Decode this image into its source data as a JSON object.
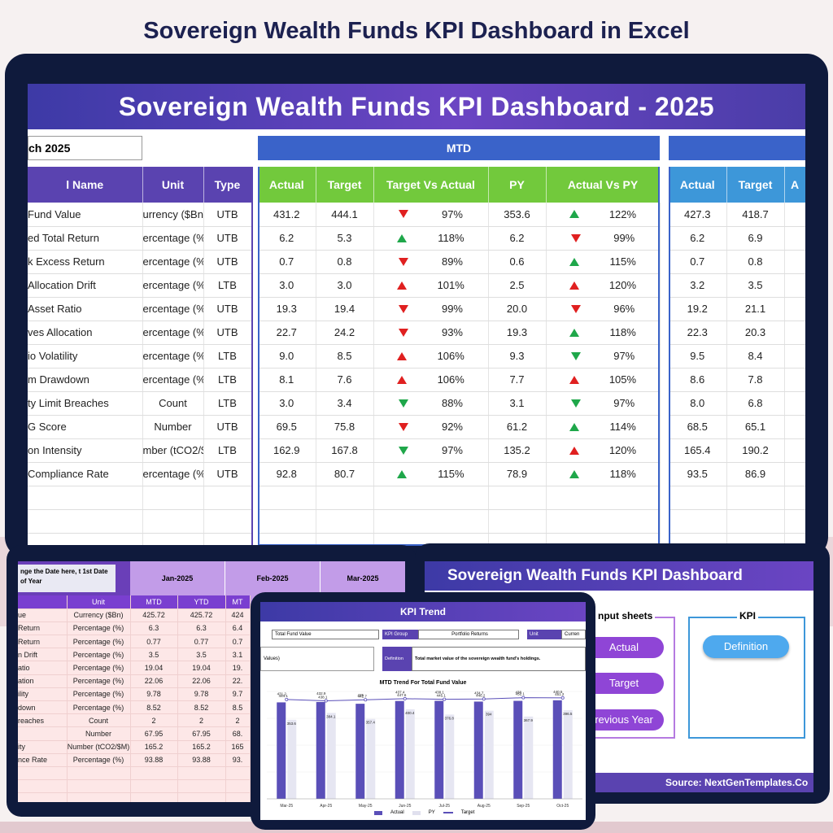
{
  "page_title": "Sovereign Wealth Funds KPI Dashboard in Excel",
  "main": {
    "banner": "Sovereign Wealth Funds KPI Dashboard - 2025",
    "date_value": "ch 2025",
    "mtd_label": "MTD",
    "left_headers": [
      "l Name",
      "Unit",
      "Type"
    ],
    "mtd_headers": [
      "Actual",
      "Target",
      "Target Vs Actual",
      "PY",
      "Actual Vs PY"
    ],
    "ytd_headers": [
      "Actual",
      "Target",
      "A"
    ],
    "rows": [
      {
        "name": "Fund Value",
        "unit": "urrency ($Bn",
        "type": "UTB",
        "a": "431.2",
        "t": "444.1",
        "tva_dir": "down-red",
        "tva": "97%",
        "py": "353.6",
        "avp_dir": "up-green",
        "avp": "122%",
        "ya": "427.3",
        "yt": "418.7"
      },
      {
        "name": "ed Total Return",
        "unit": "ercentage (%",
        "type": "UTB",
        "a": "6.2",
        "t": "5.3",
        "tva_dir": "up-green",
        "tva": "118%",
        "py": "6.2",
        "avp_dir": "down-red",
        "avp": "99%",
        "ya": "6.2",
        "yt": "6.9"
      },
      {
        "name": "k Excess Return",
        "unit": "ercentage (%",
        "type": "UTB",
        "a": "0.7",
        "t": "0.8",
        "tva_dir": "down-red",
        "tva": "89%",
        "py": "0.6",
        "avp_dir": "up-green",
        "avp": "115%",
        "ya": "0.7",
        "yt": "0.8"
      },
      {
        "name": "Allocation Drift",
        "unit": "ercentage (%",
        "type": "LTB",
        "a": "3.0",
        "t": "3.0",
        "tva_dir": "up-red",
        "tva": "101%",
        "py": "2.5",
        "avp_dir": "up-red",
        "avp": "120%",
        "ya": "3.2",
        "yt": "3.5"
      },
      {
        "name": "Asset Ratio",
        "unit": "ercentage (%",
        "type": "UTB",
        "a": "19.3",
        "t": "19.4",
        "tva_dir": "down-red",
        "tva": "99%",
        "py": "20.0",
        "avp_dir": "down-red",
        "avp": "96%",
        "ya": "19.2",
        "yt": "21.1"
      },
      {
        "name": "ves Allocation",
        "unit": "ercentage (%",
        "type": "UTB",
        "a": "22.7",
        "t": "24.2",
        "tva_dir": "down-red",
        "tva": "93%",
        "py": "19.3",
        "avp_dir": "up-green",
        "avp": "118%",
        "ya": "22.3",
        "yt": "20.3"
      },
      {
        "name": "io Volatility",
        "unit": "ercentage (%",
        "type": "LTB",
        "a": "9.0",
        "t": "8.5",
        "tva_dir": "up-red",
        "tva": "106%",
        "py": "9.3",
        "avp_dir": "down-green",
        "avp": "97%",
        "ya": "9.5",
        "yt": "8.4"
      },
      {
        "name": "m Drawdown",
        "unit": "ercentage (%",
        "type": "LTB",
        "a": "8.1",
        "t": "7.6",
        "tva_dir": "up-red",
        "tva": "106%",
        "py": "7.7",
        "avp_dir": "up-red",
        "avp": "105%",
        "ya": "8.6",
        "yt": "7.8"
      },
      {
        "name": "ty Limit Breaches",
        "unit": "Count",
        "type": "LTB",
        "a": "3.0",
        "t": "3.4",
        "tva_dir": "down-green",
        "tva": "88%",
        "py": "3.1",
        "avp_dir": "down-green",
        "avp": "97%",
        "ya": "8.0",
        "yt": "6.8"
      },
      {
        "name": "G Score",
        "unit": "Number",
        "type": "UTB",
        "a": "69.5",
        "t": "75.8",
        "tva_dir": "down-red",
        "tva": "92%",
        "py": "61.2",
        "avp_dir": "up-green",
        "avp": "114%",
        "ya": "68.5",
        "yt": "65.1"
      },
      {
        "name": "on Intensity",
        "unit": "mber (tCO2/$",
        "type": "LTB",
        "a": "162.9",
        "t": "167.8",
        "tva_dir": "down-green",
        "tva": "97%",
        "py": "135.2",
        "avp_dir": "up-red",
        "avp": "120%",
        "ya": "165.4",
        "yt": "190.2"
      },
      {
        "name": "Compliance Rate",
        "unit": "ercentage (%",
        "type": "UTB",
        "a": "92.8",
        "t": "80.7",
        "tva_dir": "up-green",
        "tva": "115%",
        "py": "78.9",
        "avp_dir": "up-green",
        "avp": "118%",
        "ya": "93.5",
        "yt": "86.9"
      }
    ]
  },
  "left_tablet": {
    "note": "nge the Date here, t 1st Date of Year",
    "months": [
      "Jan-2025",
      "Feb-2025",
      "Mar-2025"
    ],
    "sub_headers": [
      "Unit",
      "MTD",
      "YTD",
      "MT"
    ],
    "rows": [
      [
        "ue",
        "Currency ($Bn)",
        "425.72",
        "425.72",
        "424"
      ],
      [
        "Return",
        "Percentage (%)",
        "6.3",
        "6.3",
        "6.4"
      ],
      [
        "Return",
        "Percentage (%)",
        "0.77",
        "0.77",
        "0.7"
      ],
      [
        "n Drift",
        "Percentage (%)",
        "3.5",
        "3.5",
        "3.1"
      ],
      [
        "atio",
        "Percentage (%)",
        "19.04",
        "19.04",
        "19."
      ],
      [
        "ation",
        "Percentage (%)",
        "22.06",
        "22.06",
        "22."
      ],
      [
        "ility",
        "Percentage (%)",
        "9.78",
        "9.78",
        "9.7"
      ],
      [
        "down",
        "Percentage (%)",
        "8.52",
        "8.52",
        "8.5"
      ],
      [
        "reaches",
        "Count",
        "2",
        "2",
        "2"
      ],
      [
        "",
        "Number",
        "67.95",
        "67.95",
        "68."
      ],
      [
        "ity",
        "Number (tCO2/$M)",
        "165.2",
        "165.2",
        "165"
      ],
      [
        "nce Rate",
        "Percentage (%)",
        "93.88",
        "93.88",
        "93."
      ]
    ]
  },
  "right_tablet": {
    "title": "Sovereign Wealth Funds KPI Dashboard",
    "input_header": "nput sheets",
    "input_buttons": [
      "Actual",
      "Target",
      "revious Year"
    ],
    "kpi_header": "KPI",
    "kpi_button": "Definition",
    "source": "Source: NextGenTemplates.Co"
  },
  "center_tablet": {
    "title": "KPI Trend",
    "kpi_name": "Total Fund Value",
    "kpi_group_label": "KPI Group",
    "kpi_group_value": "Portfolio Returns",
    "unit_label": "Unit",
    "unit_value": "Curren",
    "values_text": "Values)",
    "definition_label": "Definition",
    "definition_text": "Total market value of the sovereign wealth fund's holdings.",
    "chart_title": "MTD Trend For Total Fund Value",
    "legend": [
      "Actual",
      "PY",
      "Target"
    ]
  },
  "chart_data": {
    "type": "bar",
    "title": "MTD Trend For Total Fund Value",
    "categories": [
      "Mar-25",
      "Apr-25",
      "May-25",
      "Jun-25",
      "Jul-25",
      "Aug-25",
      "Sep-25",
      "Oct-25"
    ],
    "series": [
      {
        "name": "Actual",
        "values": [
          431.2,
          432.9,
          425.0,
          437.4,
          438.1,
          434.7,
          438.0,
          440.5
        ]
      },
      {
        "name": "PY",
        "values": [
          353.6,
          384.1,
          357.4,
          400.4,
          376.8,
          394.0,
          367.9,
          396.5
        ]
      },
      {
        "name": "Target",
        "values": [
          444.1,
          438.1,
          442.7,
          447.6,
          445.1,
          446.2,
          452.1,
          451.2
        ]
      }
    ],
    "ylim": [
      0,
      480
    ],
    "colors": {
      "Actual": "#5a4fb8",
      "PY": "#e6e6f2",
      "Target": "#5a4fb8"
    }
  }
}
